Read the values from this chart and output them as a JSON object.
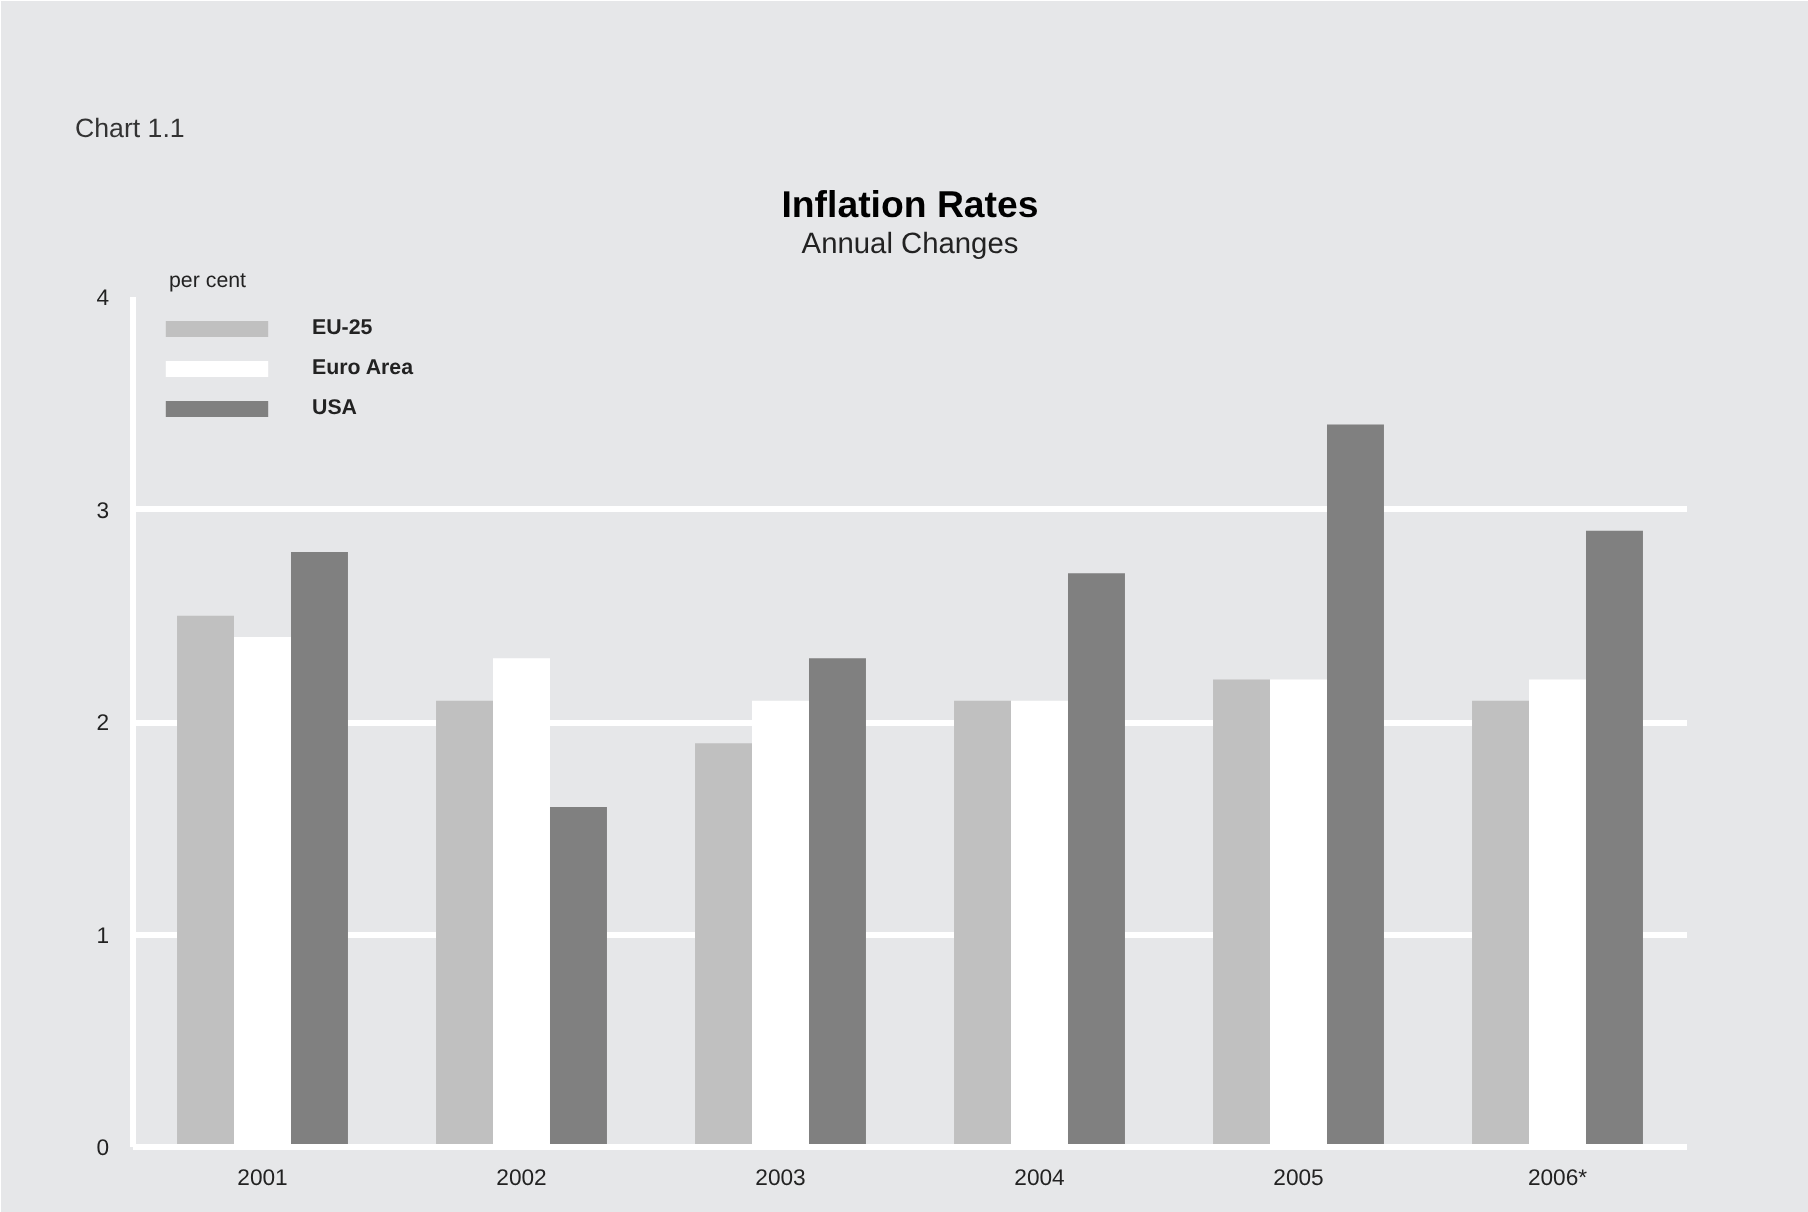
{
  "chart_data": {
    "type": "bar",
    "title": "Inflation Rates",
    "subtitle": "Annual Changes",
    "ylabel": "per cent",
    "annotations": [
      "Chart 1.1"
    ],
    "categories": [
      "2001",
      "2002",
      "2003",
      "2004",
      "2005",
      "2006*"
    ],
    "series": [
      {
        "name": "EU-25",
        "color": "#c0c0c0",
        "values": [
          2.5,
          2.1,
          1.9,
          2.1,
          2.2,
          2.1
        ]
      },
      {
        "name": "Euro Area",
        "color": "#ffffff",
        "values": [
          2.4,
          2.3,
          2.1,
          2.1,
          2.2,
          2.2
        ]
      },
      {
        "name": "USA",
        "color": "#808080",
        "values": [
          2.8,
          1.6,
          2.3,
          2.7,
          3.4,
          2.9
        ]
      }
    ],
    "ylim": [
      0,
      4
    ],
    "yticks": [
      0,
      1,
      2,
      3,
      4
    ],
    "grid": "y",
    "legend": "top left"
  }
}
